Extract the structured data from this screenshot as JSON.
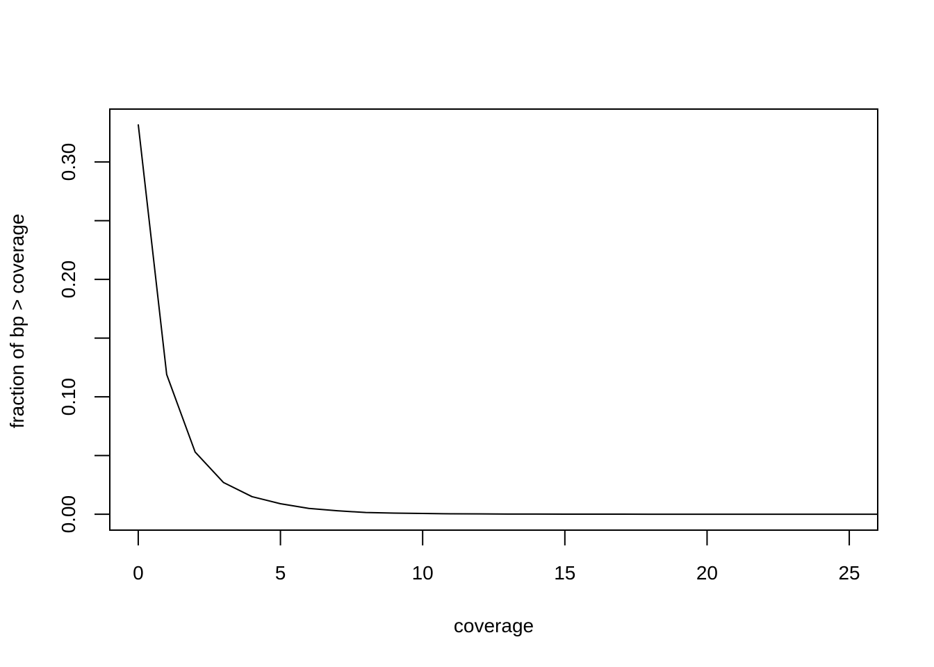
{
  "chart_data": {
    "type": "line",
    "title": "",
    "xlabel": "coverage",
    "ylabel": "fraction of bp > coverage",
    "xlim": [
      -1,
      26
    ],
    "ylim": [
      -0.0135,
      0.345
    ],
    "xticks": [
      0,
      5,
      10,
      15,
      20,
      25
    ],
    "xtick_labels": [
      "0",
      "5",
      "10",
      "15",
      "20",
      "25"
    ],
    "yticks": [
      0.0,
      0.05,
      0.1,
      0.15,
      0.2,
      0.25,
      0.3
    ],
    "ytick_labels": [
      "0.00",
      "",
      "0.10",
      "",
      "0.20",
      "",
      "0.30"
    ],
    "grid": false,
    "legend": "none",
    "line_color": "#000000",
    "series": [
      {
        "x": [
          0,
          1,
          2,
          3,
          4,
          5,
          6,
          7,
          8,
          9,
          10,
          11,
          12,
          13,
          14,
          15,
          16,
          17,
          18,
          19,
          20,
          21,
          22,
          23,
          24,
          25,
          26
        ],
        "values": [
          0.332,
          0.119,
          0.053,
          0.027,
          0.015,
          0.009,
          0.005,
          0.003,
          0.0015,
          0.001,
          0.0007,
          0.0004,
          0.0003,
          0.0002,
          0.00015,
          0.0001,
          0.0001,
          8e-05,
          6e-05,
          5e-05,
          4e-05,
          3e-05,
          3e-05,
          2e-05,
          2e-05,
          1e-05,
          1e-05
        ]
      }
    ]
  }
}
